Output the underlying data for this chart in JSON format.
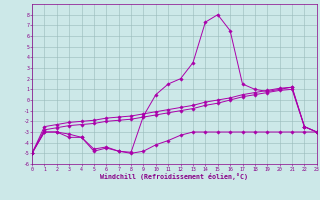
{
  "xlabel": "Windchill (Refroidissement éolien,°C)",
  "bg_color": "#cce8e8",
  "line_color": "#aa00aa",
  "grid_color": "#99bbbb",
  "xlim": [
    0,
    23
  ],
  "ylim": [
    -6,
    9
  ],
  "xticks": [
    0,
    1,
    2,
    3,
    4,
    5,
    6,
    7,
    8,
    9,
    10,
    11,
    12,
    13,
    14,
    15,
    16,
    17,
    18,
    19,
    20,
    21,
    22,
    23
  ],
  "yticks": [
    -6,
    -5,
    -4,
    -3,
    -2,
    -1,
    0,
    1,
    2,
    3,
    4,
    5,
    6,
    7,
    8
  ],
  "line1_x": [
    0,
    1,
    2,
    3,
    4,
    5,
    6,
    7,
    8,
    9,
    10,
    11,
    12,
    13,
    14,
    15,
    16,
    17,
    18,
    19,
    20,
    21,
    22,
    23
  ],
  "line1_y": [
    -5.0,
    -3.0,
    -3.0,
    -3.5,
    -3.5,
    -4.8,
    -4.5,
    -4.8,
    -5.0,
    -4.8,
    -4.2,
    -3.8,
    -3.3,
    -3.0,
    -3.0,
    -3.0,
    -3.0,
    -3.0,
    -3.0,
    -3.0,
    -3.0,
    -3.0,
    -3.0,
    -3.0
  ],
  "line2_x": [
    0,
    1,
    2,
    3,
    4,
    5,
    6,
    7,
    8,
    9,
    10,
    11,
    12,
    13,
    14,
    15,
    16,
    17,
    18,
    19,
    20,
    21,
    22,
    23
  ],
  "line2_y": [
    -5.0,
    -3.0,
    -3.0,
    -3.2,
    -3.5,
    -4.6,
    -4.4,
    -4.8,
    -4.9,
    -1.5,
    0.5,
    1.5,
    2.0,
    3.5,
    7.3,
    8.0,
    6.5,
    1.5,
    1.0,
    0.8,
    1.0,
    1.2,
    -2.5,
    -3.0
  ],
  "line3_x": [
    0,
    1,
    2,
    3,
    4,
    5,
    6,
    7,
    8,
    9,
    10,
    11,
    12,
    13,
    14,
    15,
    16,
    17,
    18,
    19,
    20,
    21,
    22,
    23
  ],
  "line3_y": [
    -5.0,
    -2.8,
    -2.6,
    -2.4,
    -2.3,
    -2.2,
    -2.0,
    -1.9,
    -1.8,
    -1.6,
    -1.4,
    -1.2,
    -1.0,
    -0.8,
    -0.5,
    -0.3,
    0.0,
    0.3,
    0.5,
    0.7,
    0.9,
    1.0,
    -2.5,
    -3.0
  ],
  "line4_x": [
    0,
    1,
    2,
    3,
    4,
    5,
    6,
    7,
    8,
    9,
    10,
    11,
    12,
    13,
    14,
    15,
    16,
    17,
    18,
    19,
    20,
    21,
    22,
    23
  ],
  "line4_y": [
    -5.0,
    -2.5,
    -2.3,
    -2.1,
    -2.0,
    -1.9,
    -1.7,
    -1.6,
    -1.5,
    -1.3,
    -1.1,
    -0.9,
    -0.7,
    -0.5,
    -0.2,
    0.0,
    0.2,
    0.5,
    0.7,
    0.9,
    1.1,
    1.2,
    -2.5,
    -3.0
  ]
}
